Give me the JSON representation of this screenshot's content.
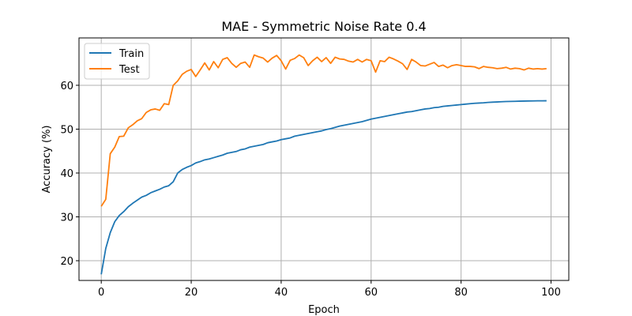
{
  "chart_data": {
    "type": "line",
    "title": "MAE - Symmetric Noise Rate 0.4",
    "xlabel": "Epoch",
    "ylabel": "Accuracy (%)",
    "xlim": [
      -4.95,
      103.95
    ],
    "ylim": [
      15.5,
      70.8
    ],
    "xticks": [
      0,
      20,
      40,
      60,
      80,
      100
    ],
    "yticks": [
      20,
      30,
      40,
      50,
      60
    ],
    "grid": true,
    "legend_position": "upper-left",
    "series": [
      {
        "name": "Train",
        "color": "#1f77b4",
        "x": [
          0,
          1,
          2,
          3,
          4,
          5,
          6,
          7,
          8,
          9,
          10,
          11,
          12,
          13,
          14,
          15,
          16,
          17,
          18,
          19,
          20,
          21,
          22,
          23,
          24,
          25,
          26,
          27,
          28,
          29,
          30,
          31,
          32,
          33,
          34,
          35,
          36,
          37,
          38,
          39,
          40,
          41,
          42,
          43,
          44,
          45,
          46,
          47,
          48,
          49,
          50,
          51,
          52,
          53,
          54,
          55,
          56,
          57,
          58,
          59,
          60,
          61,
          62,
          63,
          64,
          65,
          66,
          67,
          68,
          69,
          70,
          71,
          72,
          73,
          74,
          75,
          76,
          77,
          78,
          79,
          80,
          81,
          82,
          83,
          84,
          85,
          86,
          87,
          88,
          89,
          90,
          91,
          92,
          93,
          94,
          95,
          96,
          97,
          98,
          99
        ],
        "values": [
          16.9,
          22.8,
          26.4,
          28.9,
          30.3,
          31.2,
          32.3,
          33.1,
          33.8,
          34.5,
          34.9,
          35.5,
          35.9,
          36.3,
          36.8,
          37.1,
          38.0,
          40.0,
          40.8,
          41.3,
          41.7,
          42.3,
          42.6,
          43.0,
          43.2,
          43.5,
          43.8,
          44.1,
          44.5,
          44.7,
          44.9,
          45.3,
          45.5,
          45.9,
          46.1,
          46.3,
          46.5,
          46.9,
          47.1,
          47.3,
          47.6,
          47.8,
          48.0,
          48.4,
          48.6,
          48.8,
          49.0,
          49.2,
          49.4,
          49.6,
          49.9,
          50.1,
          50.4,
          50.7,
          50.9,
          51.1,
          51.3,
          51.5,
          51.7,
          52.0,
          52.3,
          52.5,
          52.7,
          52.9,
          53.1,
          53.3,
          53.5,
          53.7,
          53.9,
          54.0,
          54.2,
          54.4,
          54.6,
          54.7,
          54.9,
          55.0,
          55.2,
          55.3,
          55.4,
          55.5,
          55.6,
          55.7,
          55.8,
          55.9,
          55.95,
          56.0,
          56.1,
          56.15,
          56.2,
          56.25,
          56.3,
          56.32,
          56.35,
          56.38,
          56.4,
          56.42,
          56.44,
          56.45,
          56.46,
          56.47
        ]
      },
      {
        "name": "Test",
        "color": "#ff7f0e",
        "x": [
          0,
          1,
          2,
          3,
          4,
          5,
          6,
          7,
          8,
          9,
          10,
          11,
          12,
          13,
          14,
          15,
          16,
          17,
          18,
          19,
          20,
          21,
          22,
          23,
          24,
          25,
          26,
          27,
          28,
          29,
          30,
          31,
          32,
          33,
          34,
          35,
          36,
          37,
          38,
          39,
          40,
          41,
          42,
          43,
          44,
          45,
          46,
          47,
          48,
          49,
          50,
          51,
          52,
          53,
          54,
          55,
          56,
          57,
          58,
          59,
          60,
          61,
          62,
          63,
          64,
          65,
          66,
          67,
          68,
          69,
          70,
          71,
          72,
          73,
          74,
          75,
          76,
          77,
          78,
          79,
          80,
          81,
          82,
          83,
          84,
          85,
          86,
          87,
          88,
          89,
          90,
          91,
          92,
          93,
          94,
          95,
          96,
          97,
          98,
          99
        ],
        "values": [
          32.4,
          34.0,
          44.4,
          45.9,
          48.3,
          48.4,
          50.3,
          51.0,
          51.9,
          52.4,
          53.8,
          54.4,
          54.6,
          54.3,
          55.8,
          55.6,
          60.0,
          61.0,
          62.5,
          63.2,
          63.6,
          62.0,
          63.5,
          65.1,
          63.5,
          65.4,
          64.0,
          65.9,
          66.3,
          65.0,
          64.1,
          65.0,
          65.3,
          64.1,
          66.9,
          66.5,
          66.2,
          65.3,
          66.2,
          66.8,
          65.6,
          63.7,
          65.7,
          66.1,
          66.9,
          66.3,
          64.5,
          65.6,
          66.4,
          65.4,
          66.3,
          65.0,
          66.4,
          66.0,
          65.9,
          65.5,
          65.3,
          65.9,
          65.3,
          65.9,
          65.6,
          63.0,
          65.6,
          65.4,
          66.4,
          66.0,
          65.5,
          64.9,
          63.6,
          65.9,
          65.3,
          64.5,
          64.4,
          64.8,
          65.2,
          64.3,
          64.6,
          64.0,
          64.5,
          64.7,
          64.5,
          64.3,
          64.3,
          64.2,
          63.8,
          64.3,
          64.1,
          64.0,
          63.8,
          63.9,
          64.1,
          63.7,
          63.9,
          63.8,
          63.5,
          63.9,
          63.7,
          63.8,
          63.7,
          63.8
        ]
      }
    ]
  }
}
